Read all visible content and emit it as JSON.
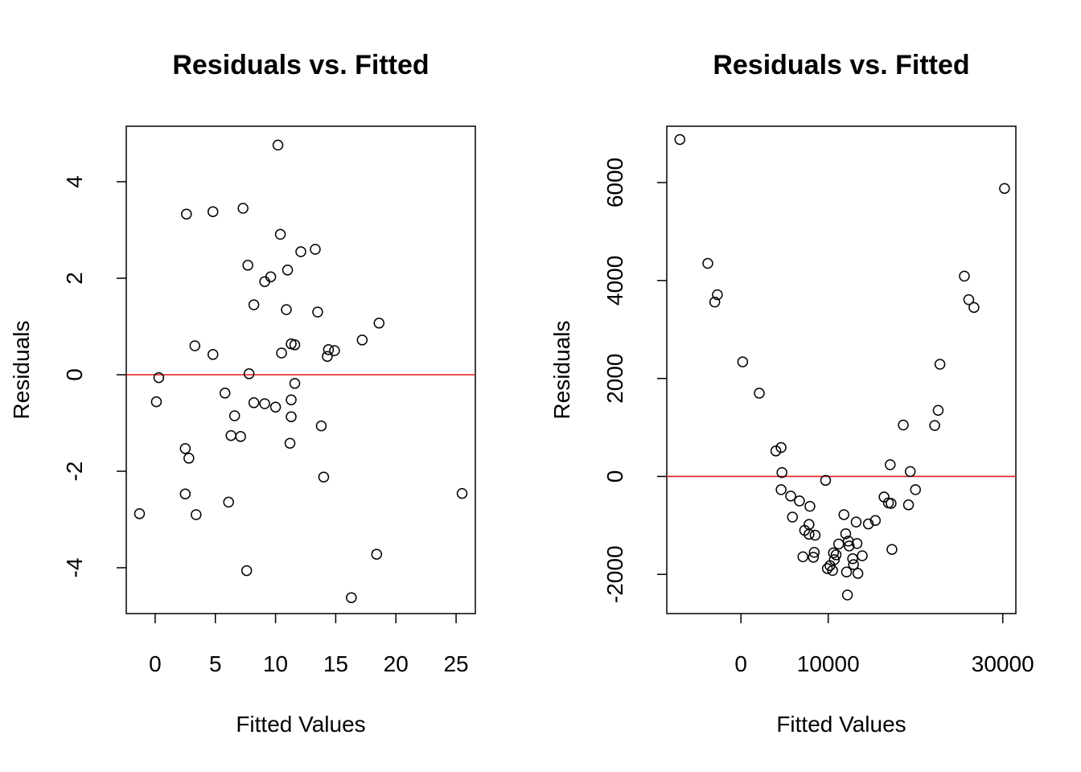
{
  "chart_data": [
    {
      "type": "scatter",
      "title": "Residuals vs. Fitted",
      "xlabel": "Fitted Values",
      "ylabel": "Residuals",
      "xlim": [
        -2.4,
        26.6
      ],
      "ylim": [
        -4.95,
        5.15
      ],
      "xticks": [
        0,
        5,
        10,
        15,
        20,
        25
      ],
      "yticks": [
        -4,
        -2,
        0,
        2,
        4
      ],
      "reference_line": {
        "y": 0,
        "color": "#e41a1c"
      },
      "points": [
        [
          -1.3,
          -2.88
        ],
        [
          0.1,
          -0.56
        ],
        [
          0.3,
          -0.06
        ],
        [
          2.5,
          -1.53
        ],
        [
          2.6,
          3.33
        ],
        [
          2.8,
          -1.73
        ],
        [
          2.5,
          -2.47
        ],
        [
          3.3,
          0.6
        ],
        [
          3.4,
          -2.9
        ],
        [
          4.8,
          3.38
        ],
        [
          4.8,
          0.42
        ],
        [
          5.8,
          -0.38
        ],
        [
          6.1,
          -2.64
        ],
        [
          6.3,
          -1.26
        ],
        [
          6.6,
          -0.85
        ],
        [
          7.1,
          -1.28
        ],
        [
          7.3,
          3.45
        ],
        [
          7.7,
          2.27
        ],
        [
          7.6,
          -4.06
        ],
        [
          7.8,
          0.02
        ],
        [
          8.2,
          1.45
        ],
        [
          8.2,
          -0.58
        ],
        [
          9.1,
          1.93
        ],
        [
          9.1,
          -0.6
        ],
        [
          9.6,
          2.03
        ],
        [
          10.0,
          -0.67
        ],
        [
          10.2,
          4.76
        ],
        [
          10.4,
          2.91
        ],
        [
          10.5,
          0.45
        ],
        [
          10.9,
          1.35
        ],
        [
          11.0,
          2.17
        ],
        [
          11.2,
          -1.42
        ],
        [
          11.3,
          -0.87
        ],
        [
          11.3,
          -0.52
        ],
        [
          11.3,
          0.64
        ],
        [
          11.6,
          -0.18
        ],
        [
          11.6,
          0.62
        ],
        [
          12.1,
          2.55
        ],
        [
          13.3,
          2.6
        ],
        [
          13.5,
          1.3
        ],
        [
          13.8,
          -1.06
        ],
        [
          14.0,
          -2.12
        ],
        [
          14.3,
          0.38
        ],
        [
          14.4,
          0.52
        ],
        [
          14.9,
          0.5
        ],
        [
          16.3,
          -4.62
        ],
        [
          17.2,
          0.72
        ],
        [
          18.4,
          -3.72
        ],
        [
          18.6,
          1.07
        ],
        [
          25.5,
          -2.46
        ]
      ]
    },
    {
      "type": "scatter",
      "title": "Residuals vs. Fitted",
      "xlabel": "Fitted Values",
      "ylabel": "Residuals",
      "xlim": [
        -8500,
        31500
      ],
      "ylim": [
        -2800,
        7150
      ],
      "xticks": [
        0,
        10000,
        30000
      ],
      "yticks": [
        -2000,
        0,
        2000,
        4000,
        6000
      ],
      "reference_line": {
        "y": 0,
        "color": "#e41a1c"
      },
      "points": [
        [
          -7000,
          6880
        ],
        [
          -3800,
          4350
        ],
        [
          -3000,
          3560
        ],
        [
          -2700,
          3710
        ],
        [
          200,
          2340
        ],
        [
          2100,
          1700
        ],
        [
          4000,
          520
        ],
        [
          4600,
          590
        ],
        [
          4700,
          80
        ],
        [
          4600,
          -270
        ],
        [
          5700,
          -400
        ],
        [
          5900,
          -830
        ],
        [
          6700,
          -500
        ],
        [
          7100,
          -1640
        ],
        [
          7300,
          -1100
        ],
        [
          7800,
          -1180
        ],
        [
          7900,
          -610
        ],
        [
          7800,
          -980
        ],
        [
          8300,
          -1650
        ],
        [
          8400,
          -1550
        ],
        [
          8500,
          -1200
        ],
        [
          9700,
          -80
        ],
        [
          9900,
          -1880
        ],
        [
          10200,
          -1820
        ],
        [
          10500,
          -1920
        ],
        [
          10600,
          -1560
        ],
        [
          10700,
          -1700
        ],
        [
          10900,
          -1600
        ],
        [
          11200,
          -1380
        ],
        [
          11800,
          -780
        ],
        [
          12000,
          -1170
        ],
        [
          12100,
          -1950
        ],
        [
          12200,
          -2420
        ],
        [
          12300,
          -1320
        ],
        [
          12400,
          -1420
        ],
        [
          12800,
          -1680
        ],
        [
          12900,
          -1800
        ],
        [
          13200,
          -930
        ],
        [
          13300,
          -1370
        ],
        [
          13400,
          -1980
        ],
        [
          13900,
          -1620
        ],
        [
          14600,
          -970
        ],
        [
          15400,
          -900
        ],
        [
          16400,
          -420
        ],
        [
          16900,
          -540
        ],
        [
          17100,
          240
        ],
        [
          17200,
          -550
        ],
        [
          17300,
          -1490
        ],
        [
          18600,
          1050
        ],
        [
          19200,
          -580
        ],
        [
          19400,
          100
        ],
        [
          20000,
          -270
        ],
        [
          22200,
          1040
        ],
        [
          22600,
          1350
        ],
        [
          22800,
          2290
        ],
        [
          25600,
          4090
        ],
        [
          26100,
          3610
        ],
        [
          26700,
          3450
        ],
        [
          30200,
          5880
        ]
      ]
    }
  ]
}
